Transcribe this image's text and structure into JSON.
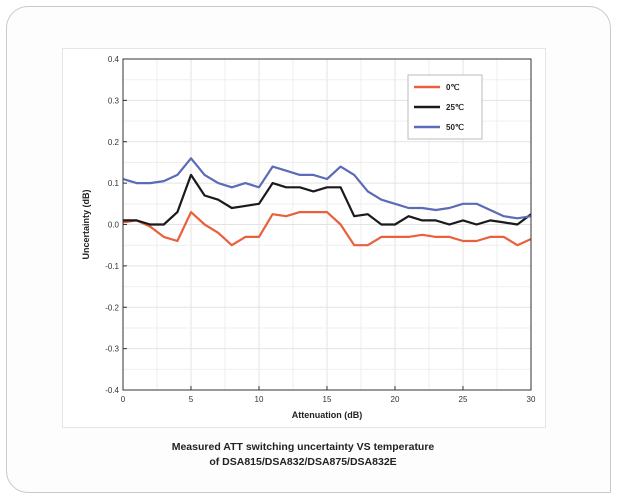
{
  "caption": {
    "line1": "Measured ATT switching uncertainty VS temperature",
    "line2": "of DSA815/DSA832/DSA875/DSA832E"
  },
  "chart_data": {
    "type": "line",
    "xlabel": "Attenuation (dB)",
    "ylabel": "Uncertainty (dB)",
    "xlim": [
      0,
      30
    ],
    "ylim": [
      -0.4,
      0.4
    ],
    "xticks": [
      "0",
      "5",
      "10",
      "15",
      "20",
      "25",
      "30"
    ],
    "yticks": [
      "-0.4",
      "-0.3",
      "-0.2",
      "-0.1",
      "0.0",
      "0.1",
      "0.2",
      "0.3",
      "0.4"
    ],
    "grid": true,
    "legend_position": "top-right",
    "x": [
      0,
      1,
      2,
      3,
      4,
      5,
      6,
      7,
      8,
      9,
      10,
      11,
      12,
      13,
      14,
      15,
      16,
      17,
      18,
      19,
      20,
      21,
      22,
      23,
      24,
      25,
      26,
      27,
      28,
      29,
      30
    ],
    "series": [
      {
        "name": "0℃",
        "color": "#e8603c",
        "values": [
          0.005,
          0.01,
          -0.005,
          -0.03,
          -0.04,
          0.03,
          0.0,
          -0.02,
          -0.05,
          -0.03,
          -0.03,
          0.025,
          0.02,
          0.03,
          0.03,
          0.03,
          0.0,
          -0.05,
          -0.05,
          -0.03,
          -0.03,
          -0.03,
          -0.025,
          -0.03,
          -0.03,
          -0.04,
          -0.04,
          -0.03,
          -0.03,
          -0.05,
          -0.035
        ]
      },
      {
        "name": "25℃",
        "color": "#1a1a1a",
        "values": [
          0.01,
          0.01,
          0.0,
          0.0,
          0.03,
          0.12,
          0.07,
          0.06,
          0.04,
          0.045,
          0.05,
          0.1,
          0.09,
          0.09,
          0.08,
          0.09,
          0.09,
          0.02,
          0.025,
          0.0,
          0.0,
          0.02,
          0.01,
          0.01,
          0.0,
          0.01,
          0.0,
          0.01,
          0.005,
          0.0,
          0.025
        ]
      },
      {
        "name": "50℃",
        "color": "#5b6bb5",
        "values": [
          0.11,
          0.1,
          0.1,
          0.105,
          0.12,
          0.16,
          0.12,
          0.1,
          0.09,
          0.1,
          0.09,
          0.14,
          0.13,
          0.12,
          0.12,
          0.11,
          0.14,
          0.12,
          0.08,
          0.06,
          0.05,
          0.04,
          0.04,
          0.035,
          0.04,
          0.05,
          0.05,
          0.035,
          0.02,
          0.015,
          0.02
        ]
      }
    ]
  }
}
